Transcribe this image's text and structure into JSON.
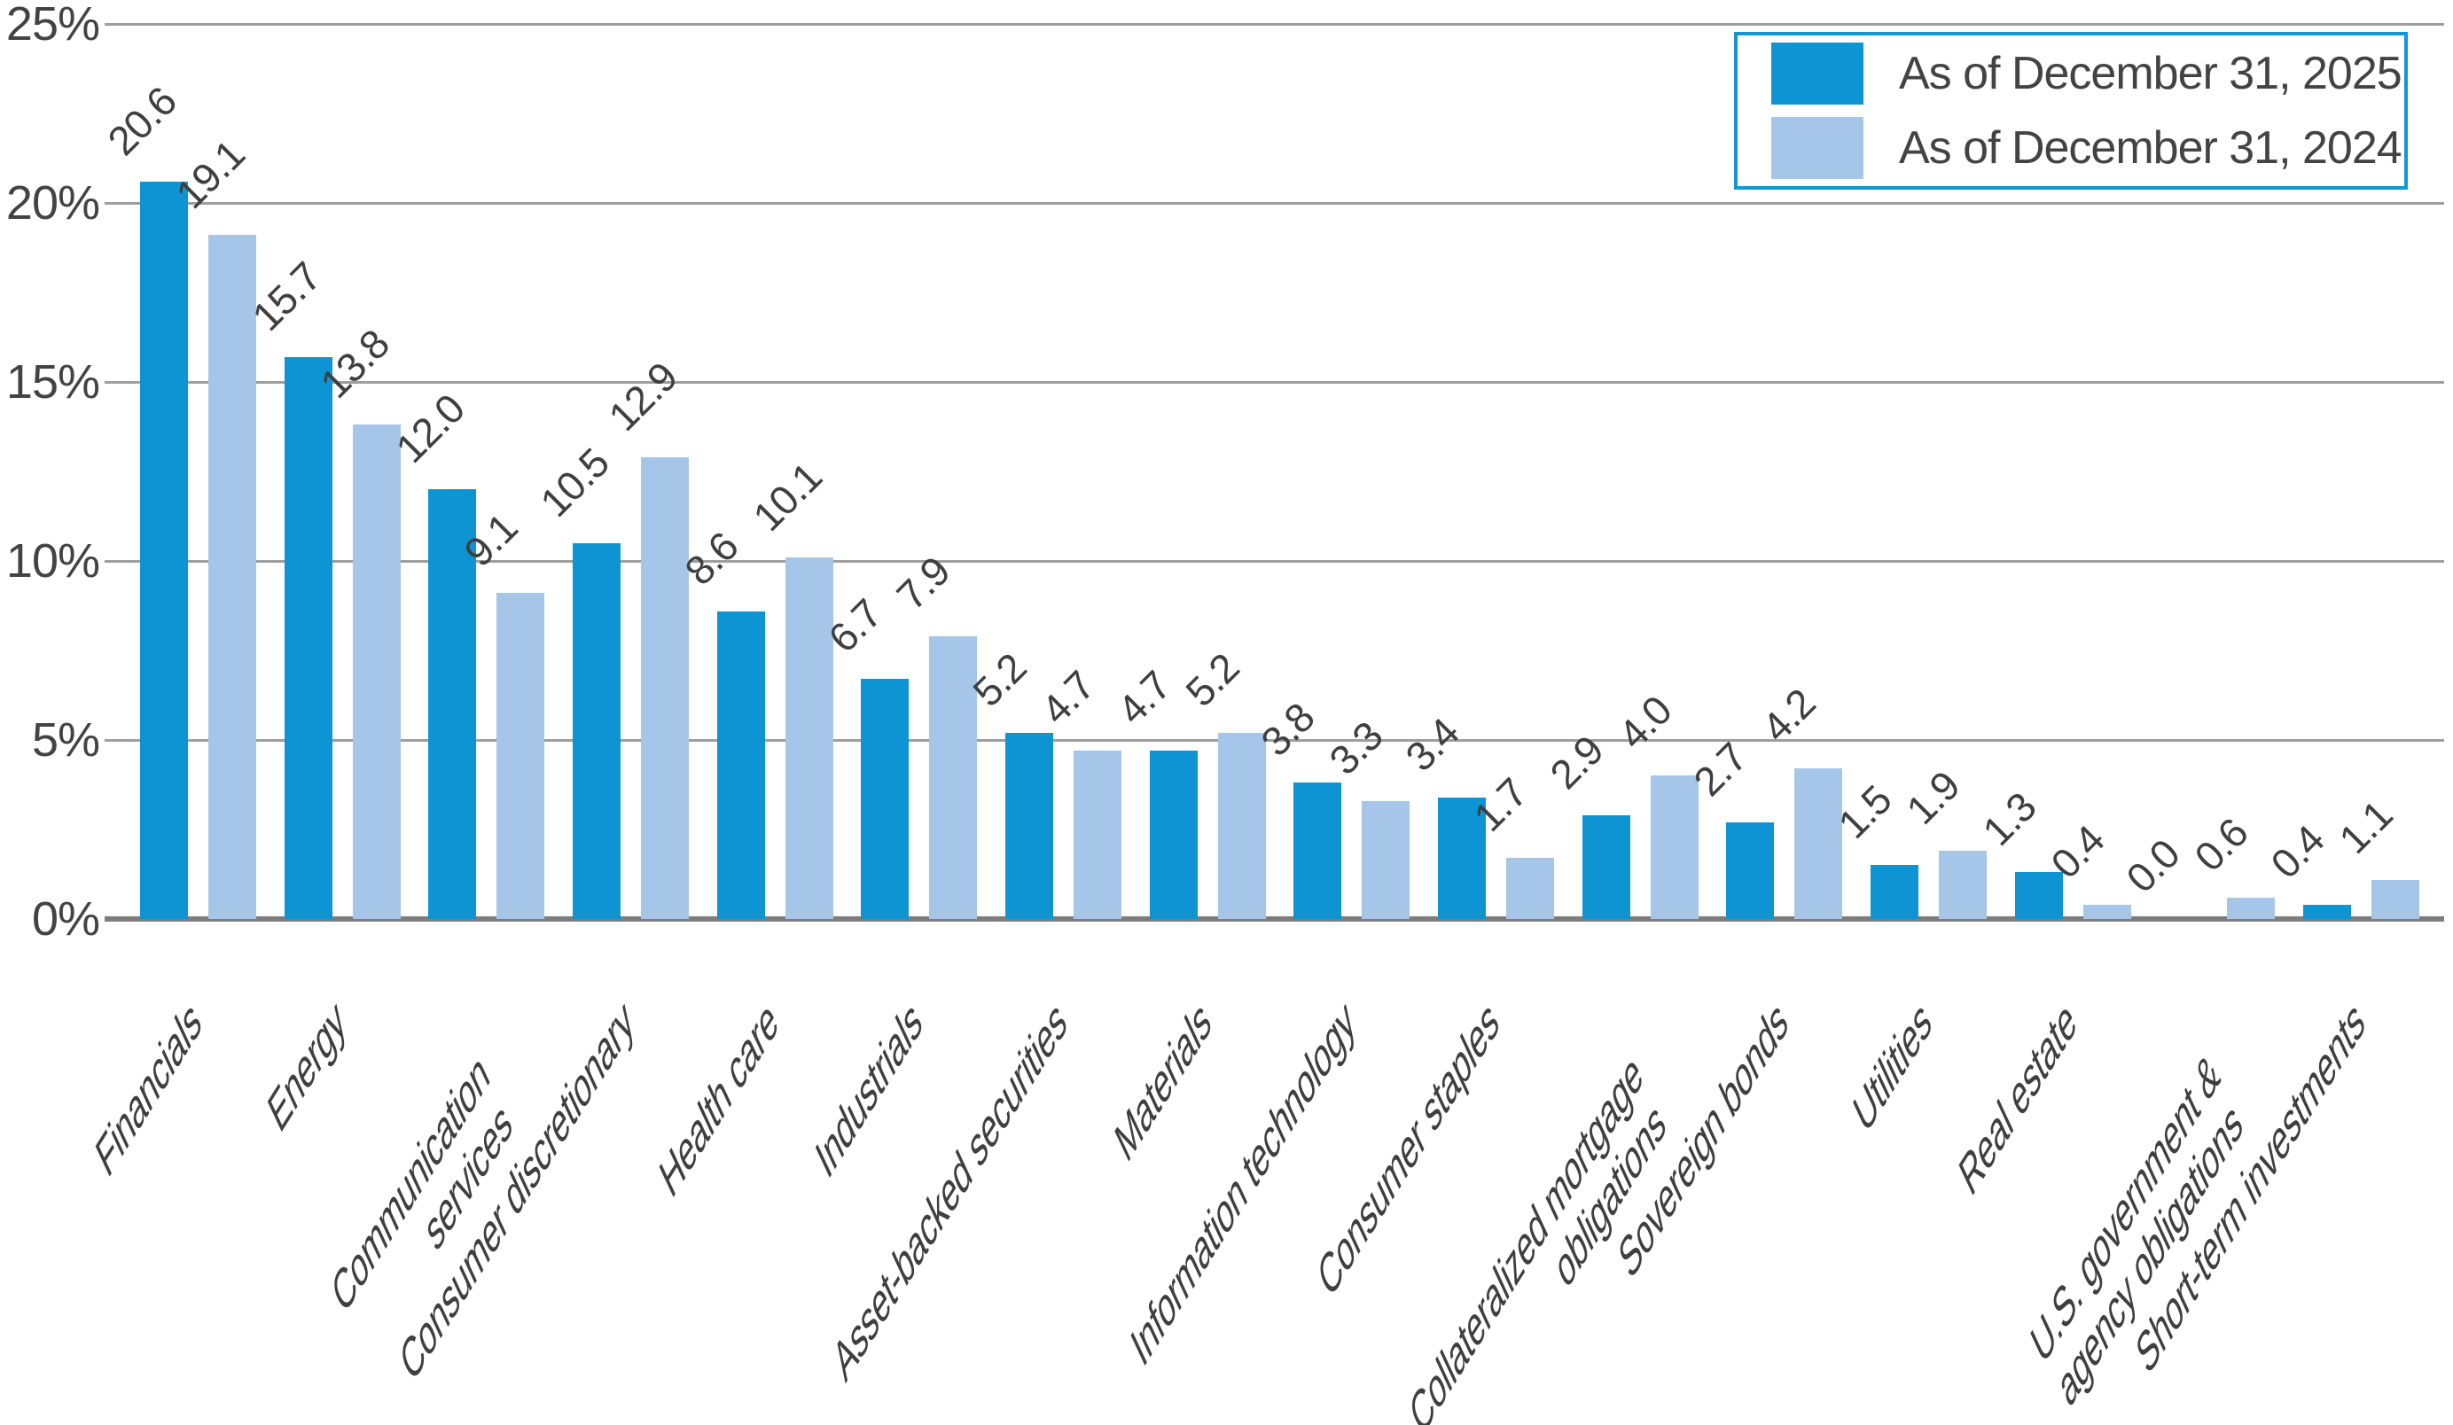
{
  "chart_data": {
    "type": "bar",
    "title": "",
    "unit": "percent",
    "categories": [
      "Financials",
      "Energy",
      "Communication\nservices",
      "Consumer discretionary",
      "Health care",
      "Industrials",
      "Asset-backed securities",
      "Materials",
      "Information technology",
      "Consumer staples",
      "Collateralized mortgage\nobligations",
      "Sovereign bonds",
      "Utilities",
      "Real estate",
      "U.S. government &\nagency obligations",
      "Short-term investments"
    ],
    "series": [
      {
        "key": "2025",
        "name": "As of December 31, 2025",
        "color": "#0E94D2",
        "values": [
          20.6,
          15.7,
          12.0,
          10.5,
          8.6,
          6.7,
          5.2,
          4.7,
          3.8,
          3.4,
          2.9,
          2.7,
          1.5,
          1.3,
          0.0,
          0.4
        ]
      },
      {
        "key": "2024",
        "name": "As of December 31, 2024",
        "color": "#A5C6E8",
        "values": [
          19.1,
          13.8,
          9.1,
          12.9,
          10.1,
          7.9,
          4.7,
          5.2,
          3.3,
          1.7,
          4.0,
          4.2,
          1.9,
          0.4,
          0.6,
          1.1
        ]
      }
    ],
    "y_axis": {
      "min": 0,
      "max": 25,
      "tick_step": 5,
      "tick_labels": [
        "0%",
        "5%",
        "10%",
        "15%",
        "20%",
        "25%"
      ],
      "grid": true
    },
    "value_labels": "one-decimal-above-each-bar",
    "legend": {
      "position": "top-right",
      "border_color": "#1496D4",
      "entries": [
        "As of December 31, 2025",
        "As of December 31, 2024"
      ]
    },
    "colors": {
      "grid": "#9E9E9E",
      "axis": "#7D7D7D",
      "text": "#434343",
      "background": "#FFFFFF"
    }
  }
}
